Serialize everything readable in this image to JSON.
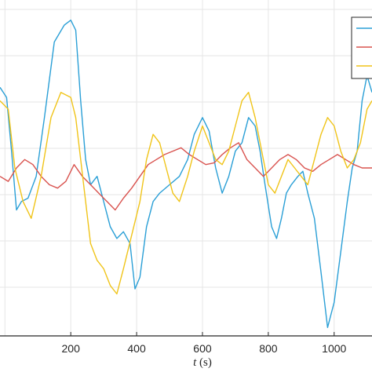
{
  "chart_data": {
    "type": "line",
    "xlabel_var": "t",
    "xlabel_unit": "(s)",
    "xlim": [
      -15,
      1115
    ],
    "ylim": [
      -1.0,
      1.0
    ],
    "grid": true,
    "legend": {
      "placement": "top-right",
      "entries": [
        "",
        "",
        ""
      ]
    },
    "xticks": [
      200,
      400,
      600,
      800,
      1000
    ],
    "series": [
      {
        "color": "#2a9fd6",
        "x": [
          -15,
          5,
          20,
          35,
          50,
          70,
          95,
          120,
          150,
          180,
          200,
          215,
          230,
          245,
          260,
          280,
          300,
          320,
          340,
          360,
          380,
          395,
          410,
          430,
          450,
          470,
          500,
          530,
          555,
          575,
          600,
          620,
          640,
          660,
          680,
          700,
          720,
          740,
          760,
          775,
          790,
          810,
          825,
          840,
          855,
          870,
          890,
          905,
          920,
          940,
          960,
          980,
          1000,
          1020,
          1040,
          1055,
          1070,
          1085,
          1100,
          1115
        ],
        "y": [
          0.48,
          0.42,
          0.1,
          -0.25,
          -0.2,
          -0.18,
          -0.05,
          0.3,
          0.75,
          0.85,
          0.88,
          0.82,
          0.4,
          0.05,
          -0.1,
          -0.05,
          -0.2,
          -0.35,
          -0.42,
          -0.38,
          -0.45,
          -0.72,
          -0.65,
          -0.35,
          -0.2,
          -0.15,
          -0.1,
          -0.05,
          0.05,
          0.2,
          0.3,
          0.22,
          0.0,
          -0.15,
          -0.05,
          0.1,
          0.15,
          0.3,
          0.25,
          0.1,
          -0.1,
          -0.35,
          -0.42,
          -0.3,
          -0.15,
          -0.1,
          -0.05,
          -0.02,
          -0.15,
          -0.3,
          -0.62,
          -0.95,
          -0.8,
          -0.5,
          -0.2,
          0.0,
          0.1,
          0.4,
          0.55,
          0.45
        ]
      },
      {
        "color": "#d9534f",
        "x": [
          -15,
          10,
          35,
          60,
          85,
          110,
          135,
          160,
          185,
          210,
          235,
          260,
          285,
          310,
          335,
          360,
          385,
          410,
          435,
          460,
          485,
          510,
          535,
          560,
          585,
          610,
          635,
          660,
          685,
          710,
          735,
          760,
          785,
          810,
          835,
          860,
          885,
          910,
          935,
          960,
          985,
          1010,
          1035,
          1060,
          1085,
          1115
        ],
        "y": [
          -0.05,
          -0.08,
          0.0,
          0.05,
          0.02,
          -0.05,
          -0.1,
          -0.12,
          -0.08,
          0.02,
          -0.05,
          -0.1,
          -0.15,
          -0.2,
          -0.25,
          -0.18,
          -0.12,
          -0.05,
          0.02,
          0.05,
          0.08,
          0.1,
          0.12,
          0.08,
          0.05,
          0.02,
          0.03,
          0.08,
          0.12,
          0.15,
          0.05,
          0.0,
          -0.05,
          0.0,
          0.05,
          0.08,
          0.05,
          0.0,
          -0.02,
          0.02,
          0.05,
          0.08,
          0.05,
          0.02,
          0.0,
          0.0
        ]
      },
      {
        "color": "#f0c419",
        "x": [
          -15,
          10,
          30,
          55,
          80,
          110,
          140,
          170,
          200,
          215,
          230,
          245,
          260,
          280,
          300,
          320,
          340,
          360,
          385,
          410,
          430,
          450,
          470,
          490,
          510,
          530,
          555,
          575,
          600,
          620,
          640,
          660,
          680,
          700,
          720,
          740,
          760,
          780,
          800,
          820,
          840,
          860,
          880,
          900,
          920,
          940,
          960,
          980,
          1000,
          1020,
          1040,
          1060,
          1080,
          1100,
          1115
        ],
        "y": [
          0.4,
          0.35,
          0.0,
          -0.2,
          -0.3,
          -0.05,
          0.3,
          0.45,
          0.42,
          0.3,
          0.05,
          -0.2,
          -0.45,
          -0.55,
          -0.6,
          -0.7,
          -0.75,
          -0.6,
          -0.4,
          -0.2,
          0.05,
          0.2,
          0.15,
          0.0,
          -0.15,
          -0.2,
          -0.05,
          0.1,
          0.25,
          0.15,
          0.05,
          0.02,
          0.1,
          0.25,
          0.4,
          0.45,
          0.3,
          0.1,
          -0.1,
          -0.15,
          -0.05,
          0.05,
          0.0,
          -0.05,
          -0.1,
          0.05,
          0.2,
          0.3,
          0.25,
          0.1,
          0.0,
          0.05,
          0.15,
          0.35,
          0.4
        ]
      }
    ]
  }
}
